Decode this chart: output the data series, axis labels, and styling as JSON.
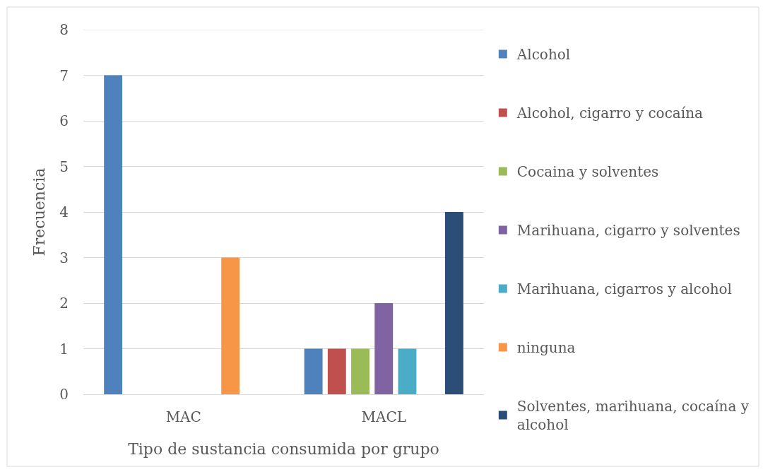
{
  "chart_data": {
    "type": "bar",
    "xlabel": "Tipo de sustancia consumida por grupo",
    "ylabel": "Frecuencia",
    "categories": [
      "MAC",
      "MACL"
    ],
    "series": [
      {
        "name": "Alcohol",
        "color": "#4f81bd",
        "values": [
          7,
          1
        ]
      },
      {
        "name": "Alcohol, cigarro y cocaína",
        "color": "#c0504d",
        "values": [
          null,
          1
        ]
      },
      {
        "name": "Cocaina y solventes",
        "color": "#9bbb59",
        "values": [
          null,
          1
        ]
      },
      {
        "name": "Marihuana, cigarro y solventes",
        "color": "#8064a2",
        "values": [
          null,
          2
        ]
      },
      {
        "name": "Marihuana, cigarros y alcohol",
        "color": "#4bacc6",
        "values": [
          null,
          1
        ]
      },
      {
        "name": "ninguna",
        "color": "#f79646",
        "values": [
          3,
          null
        ]
      },
      {
        "name": "Solventes, marihuana, cocaína y alcohol",
        "color": "#2c4d75",
        "values": [
          null,
          4
        ]
      }
    ],
    "ylim": [
      0,
      8
    ],
    "yticks": [
      0,
      1,
      2,
      3,
      4,
      5,
      6,
      7,
      8
    ],
    "grid": "y",
    "legend": "right"
  }
}
